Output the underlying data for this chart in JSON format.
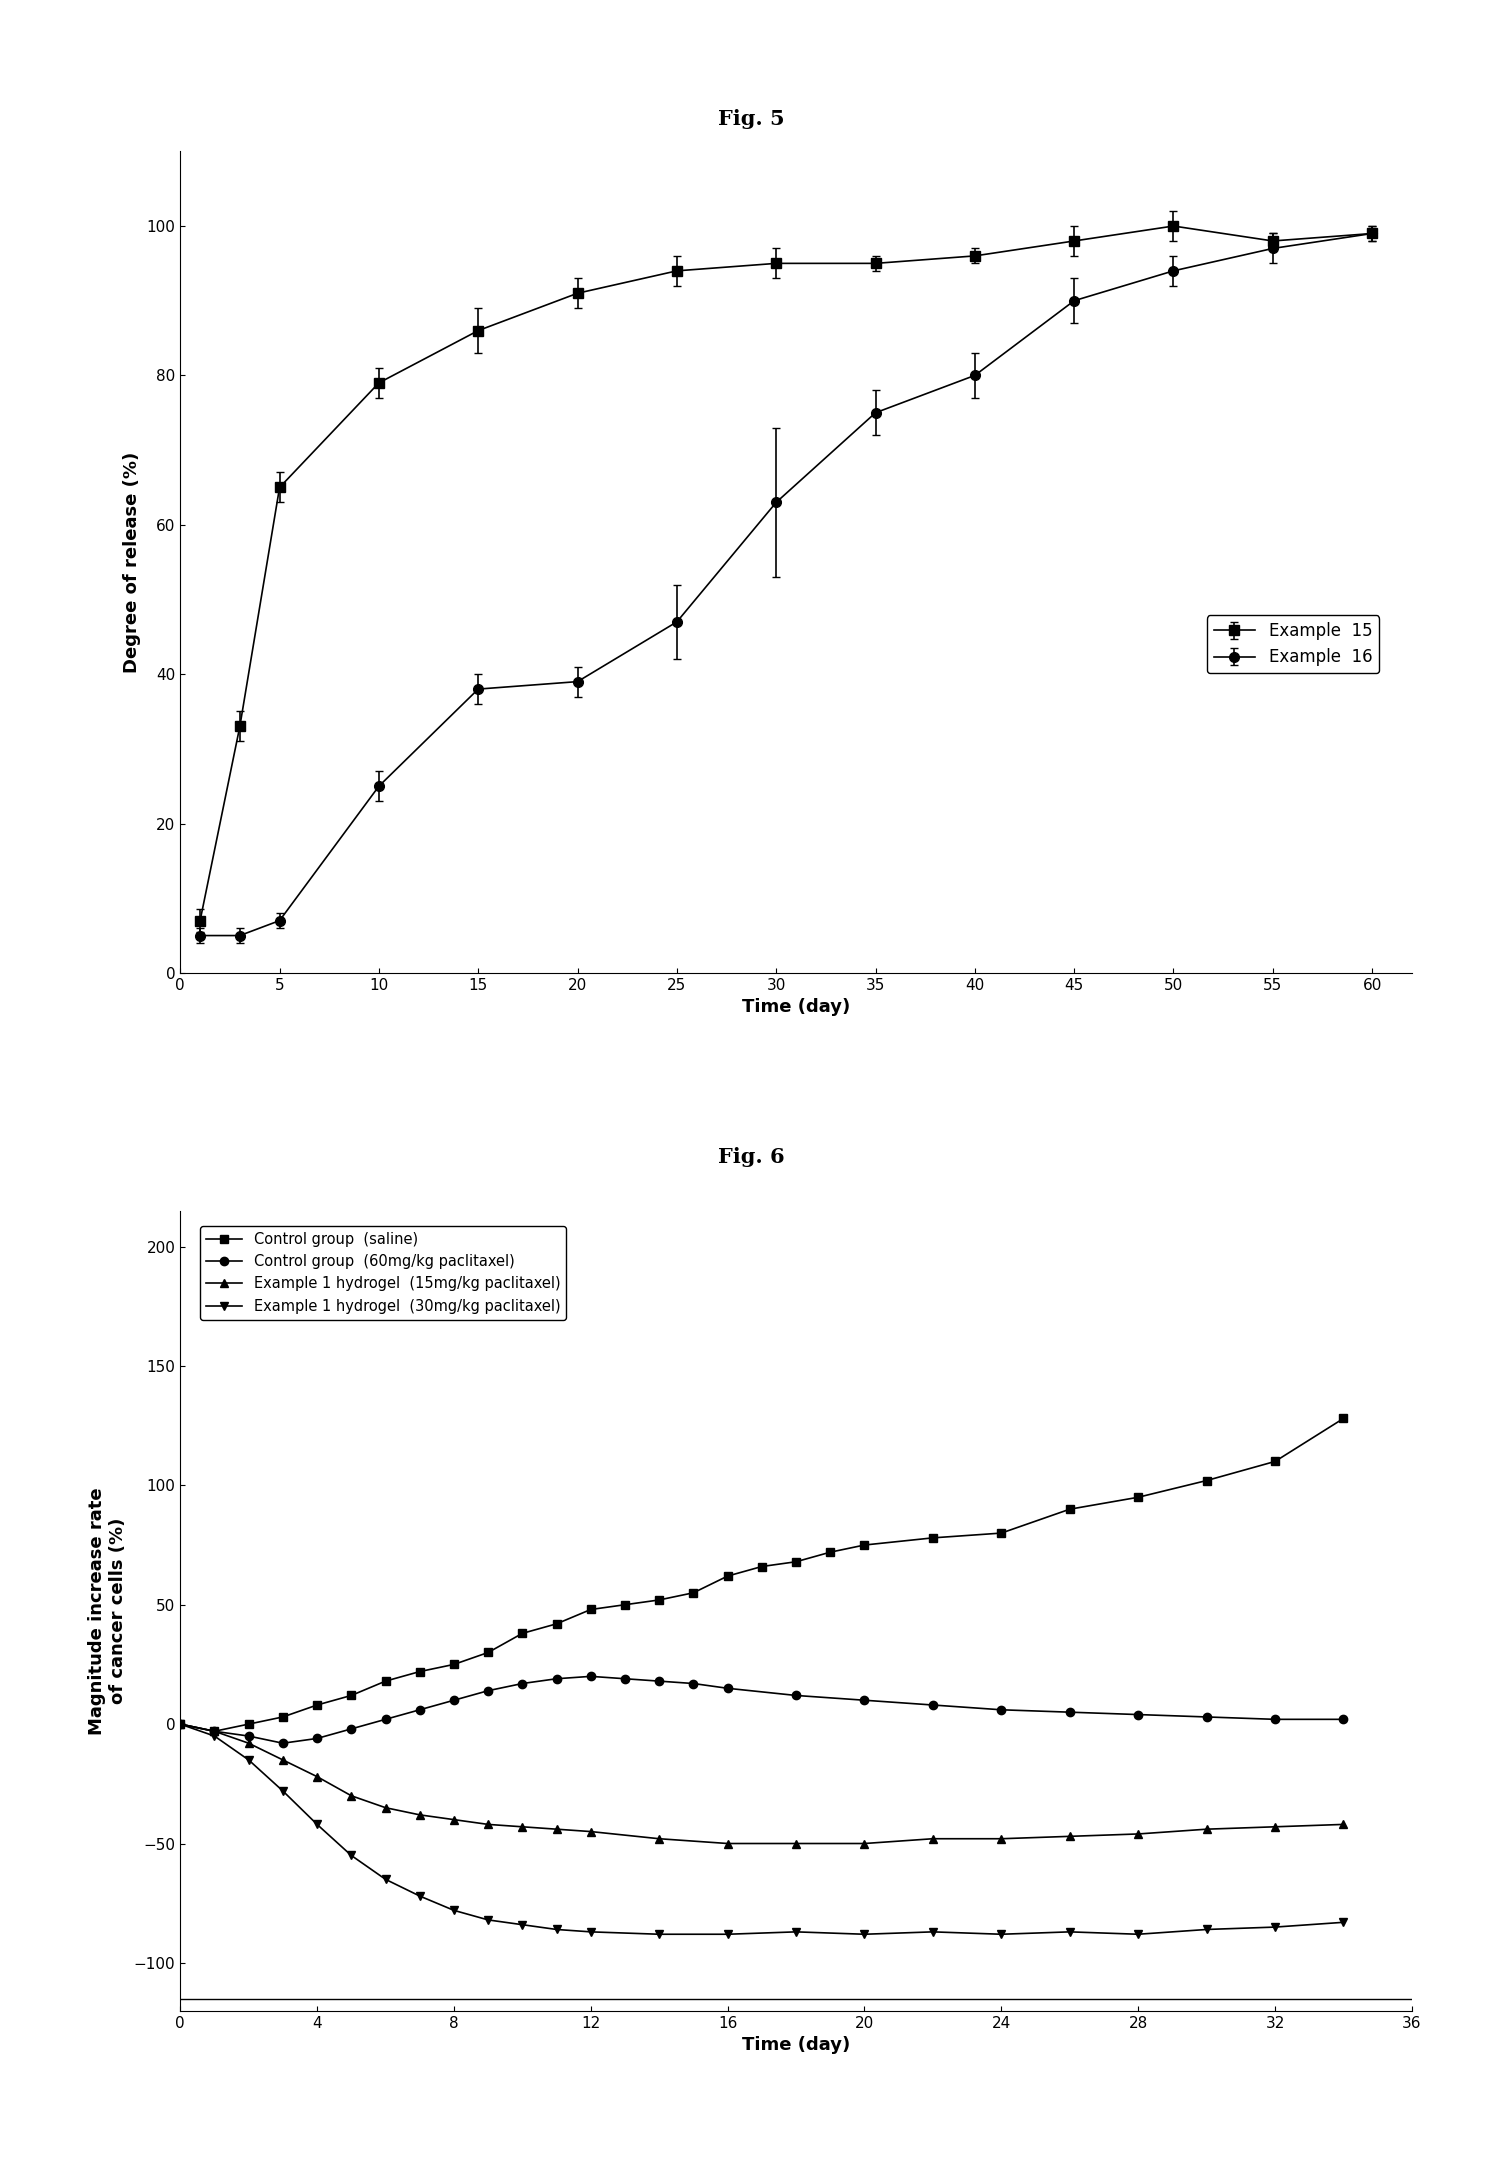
{
  "fig5_title": "Fig. 5",
  "fig6_title": "Fig. 6",
  "ex15_x": [
    1,
    3,
    5,
    10,
    15,
    20,
    25,
    30,
    35,
    40,
    45,
    50,
    55,
    60
  ],
  "ex15_y": [
    7,
    33,
    65,
    79,
    86,
    91,
    94,
    95,
    95,
    96,
    98,
    100,
    98,
    99
  ],
  "ex15_yerr": [
    1.5,
    2,
    2,
    2,
    3,
    2,
    2,
    2,
    1,
    1,
    2,
    2,
    1,
    1
  ],
  "ex16_x": [
    1,
    3,
    5,
    10,
    15,
    20,
    25,
    30,
    35,
    40,
    45,
    50,
    55,
    60
  ],
  "ex16_y": [
    5,
    5,
    7,
    25,
    38,
    39,
    47,
    63,
    75,
    80,
    90,
    94,
    97,
    99
  ],
  "ex16_yerr": [
    1,
    1,
    1,
    2,
    2,
    2,
    5,
    10,
    3,
    3,
    3,
    2,
    2,
    1
  ],
  "fig5_xlabel": "Time (day)",
  "fig5_ylabel": "Degree of release (%)",
  "fig5_xlim": [
    0,
    62
  ],
  "fig5_ylim": [
    0,
    110
  ],
  "fig5_xticks": [
    0,
    5,
    10,
    15,
    20,
    25,
    30,
    35,
    40,
    45,
    50,
    55,
    60
  ],
  "fig5_yticks": [
    0,
    20,
    40,
    60,
    80,
    100
  ],
  "ctrl_saline_x": [
    0,
    1,
    2,
    3,
    4,
    5,
    6,
    7,
    8,
    9,
    10,
    11,
    12,
    13,
    14,
    15,
    16,
    17,
    18,
    19,
    20,
    22,
    24,
    26,
    28,
    30,
    32,
    34
  ],
  "ctrl_saline_y": [
    0,
    -3,
    0,
    3,
    8,
    12,
    18,
    22,
    25,
    30,
    38,
    42,
    48,
    50,
    52,
    55,
    62,
    66,
    68,
    72,
    75,
    78,
    80,
    90,
    95,
    102,
    110,
    128
  ],
  "ctrl_ptx_x": [
    0,
    1,
    2,
    3,
    4,
    5,
    6,
    7,
    8,
    9,
    10,
    11,
    12,
    13,
    14,
    15,
    16,
    18,
    20,
    22,
    24,
    26,
    28,
    30,
    32,
    34
  ],
  "ctrl_ptx_y": [
    0,
    -3,
    -5,
    -8,
    -6,
    -2,
    2,
    6,
    10,
    14,
    17,
    19,
    20,
    19,
    18,
    17,
    15,
    12,
    10,
    8,
    6,
    5,
    4,
    3,
    2,
    2
  ],
  "ex1_15mg_x": [
    0,
    1,
    2,
    3,
    4,
    5,
    6,
    7,
    8,
    9,
    10,
    11,
    12,
    14,
    16,
    18,
    20,
    22,
    24,
    26,
    28,
    30,
    32,
    34
  ],
  "ex1_15mg_y": [
    0,
    -3,
    -8,
    -15,
    -22,
    -30,
    -35,
    -38,
    -40,
    -42,
    -43,
    -44,
    -45,
    -48,
    -50,
    -50,
    -50,
    -48,
    -48,
    -47,
    -46,
    -44,
    -43,
    -42
  ],
  "ex1_30mg_x": [
    0,
    1,
    2,
    3,
    4,
    5,
    6,
    7,
    8,
    9,
    10,
    11,
    12,
    14,
    16,
    18,
    20,
    22,
    24,
    26,
    28,
    30,
    32,
    34
  ],
  "ex1_30mg_y": [
    0,
    -5,
    -15,
    -28,
    -42,
    -55,
    -65,
    -72,
    -78,
    -82,
    -84,
    -86,
    -87,
    -88,
    -88,
    -87,
    -88,
    -87,
    -88,
    -87,
    -88,
    -86,
    -85,
    -83
  ],
  "fig6_xlabel": "Time (day)",
  "fig6_ylabel": "Magnitude increase rate\nof cancer cells (%)",
  "fig6_xlim": [
    0,
    36
  ],
  "fig6_ylim": [
    -120,
    215
  ],
  "fig6_xticks": [
    0,
    4,
    8,
    12,
    16,
    20,
    24,
    28,
    32,
    36
  ],
  "fig6_yticks": [
    -100,
    -50,
    0,
    50,
    100,
    150,
    200
  ],
  "legend15": "Example  15",
  "legend16": "Example  16",
  "legend_ctrl_saline": "Control group  (saline)",
  "legend_ctrl_ptx": "Control group  (60mg/kg paclitaxel)",
  "legend_ex1_15mg": "Example 1 hydrogel  (15mg/kg paclitaxel)",
  "legend_ex1_30mg": "Example 1 hydrogel  (30mg/kg paclitaxel)",
  "line_color": "#000000",
  "background_color": "#ffffff"
}
